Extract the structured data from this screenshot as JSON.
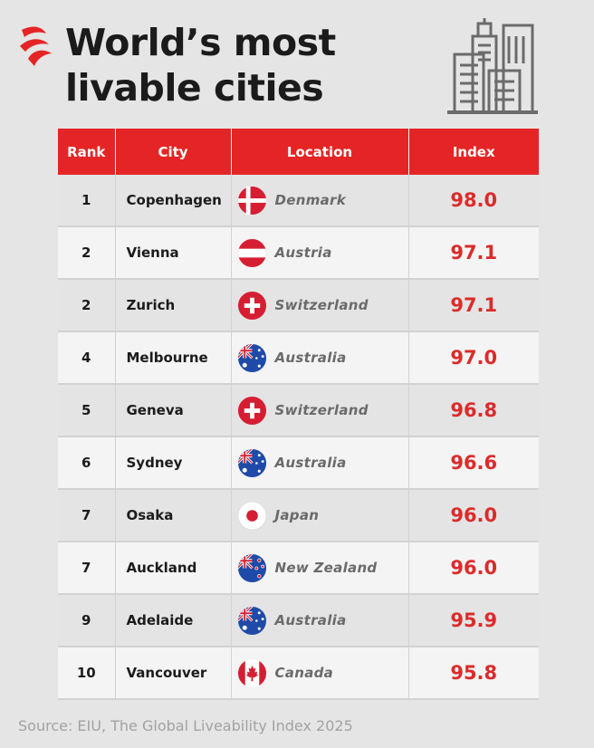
{
  "header": {
    "title_line1": "World’s most",
    "title_line2": "livable cities"
  },
  "colors": {
    "accent": "#e52525",
    "index_text": "#dc2b2b",
    "background": "#e5e5e5"
  },
  "table": {
    "columns": [
      "Rank",
      "City",
      "Location",
      "Index"
    ],
    "rows": [
      {
        "rank": "1",
        "city": "Copenhagen",
        "flag_icon": "denmark-flag-icon",
        "country": "Denmark",
        "index": "98.0"
      },
      {
        "rank": "2",
        "city": "Vienna",
        "flag_icon": "austria-flag-icon",
        "country": "Austria",
        "index": "97.1"
      },
      {
        "rank": "2",
        "city": "Zurich",
        "flag_icon": "switzerland-flag-icon",
        "country": "Switzerland",
        "index": "97.1"
      },
      {
        "rank": "4",
        "city": "Melbourne",
        "flag_icon": "australia-flag-icon",
        "country": "Australia",
        "index": "97.0"
      },
      {
        "rank": "5",
        "city": "Geneva",
        "flag_icon": "switzerland-flag-icon",
        "country": "Switzerland",
        "index": "96.8"
      },
      {
        "rank": "6",
        "city": "Sydney",
        "flag_icon": "australia-flag-icon",
        "country": "Australia",
        "index": "96.6"
      },
      {
        "rank": "7",
        "city": "Osaka",
        "flag_icon": "japan-flag-icon",
        "country": "Japan",
        "index": "96.0"
      },
      {
        "rank": "7",
        "city": "Auckland",
        "flag_icon": "new-zealand-flag-icon",
        "country": "New Zealand",
        "index": "96.0"
      },
      {
        "rank": "9",
        "city": "Adelaide",
        "flag_icon": "australia-flag-icon",
        "country": "Australia",
        "index": "95.9"
      },
      {
        "rank": "10",
        "city": "Vancouver",
        "flag_icon": "canada-flag-icon",
        "country": "Canada",
        "index": "95.8"
      }
    ]
  },
  "footer": {
    "source": "Source: EIU, The Global Liveability Index 2025"
  }
}
